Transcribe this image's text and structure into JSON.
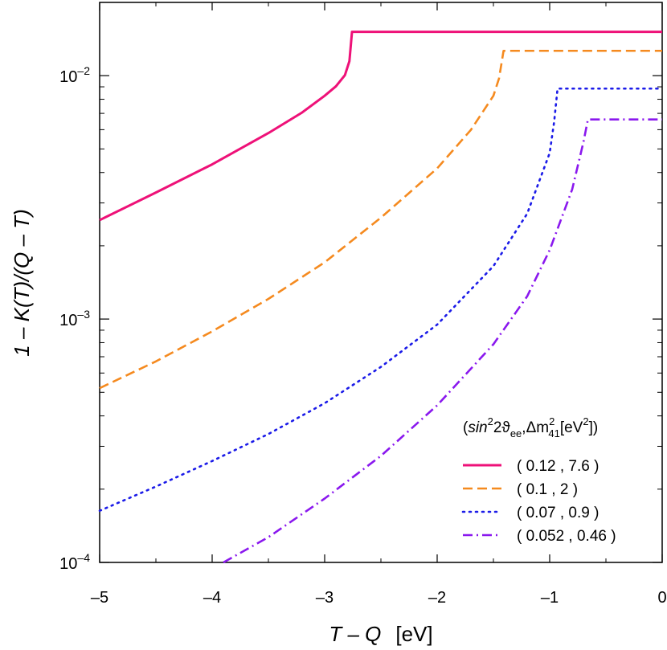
{
  "chart_data": {
    "type": "line",
    "xlabel": {
      "main": "T – Q",
      "unit": "[eV]"
    },
    "ylabel": "1 – K(T)/(Q – T)",
    "xlim": [
      -5,
      0
    ],
    "ylim": [
      0.0001,
      0.02
    ],
    "yscale": "log",
    "x_ticks": [
      {
        "value": -5,
        "label": "–5"
      },
      {
        "value": -4,
        "label": "–4"
      },
      {
        "value": -3,
        "label": "–3"
      },
      {
        "value": -2,
        "label": "–2"
      },
      {
        "value": -1,
        "label": "–1"
      },
      {
        "value": 0,
        "label": "0"
      }
    ],
    "y_ticks": [
      {
        "value": 0.0001,
        "base": "10",
        "exp": "–4"
      },
      {
        "value": 0.001,
        "base": "10",
        "exp": "–3"
      },
      {
        "value": 0.01,
        "base": "10",
        "exp": "–2"
      }
    ],
    "legend": {
      "position": "lower-right",
      "title": {
        "open": "(",
        "sin": "sin",
        "sin_exp": "2",
        "two_theta": "2ϑ",
        "ee_sub": "ee",
        "comma": ",",
        "delta_m": "Δm",
        "m_exp": "2",
        "m_sub": "41",
        "unit_open": "[eV",
        "unit_exp": "2",
        "unit_close": "])"
      }
    },
    "series": [
      {
        "name": "( 0.12 , 7.6 )",
        "color": "#ee1178",
        "dash": "solid",
        "kink_x": -2.757,
        "plateau": 0.01514,
        "points": [
          [
            -5,
            0.00255
          ],
          [
            -4.5,
            0.00331
          ],
          [
            -4,
            0.00432
          ],
          [
            -3.5,
            0.00581
          ],
          [
            -3.2,
            0.00706
          ],
          [
            -3,
            0.00827
          ],
          [
            -2.9,
            0.00904
          ],
          [
            -2.82,
            0.01005
          ],
          [
            -2.78,
            0.01147
          ],
          [
            -2.757,
            0.01514
          ],
          [
            0,
            0.01514
          ]
        ]
      },
      {
        "name": "( 0.1 , 2 )",
        "color": "#f58a1f",
        "dash": "dashed",
        "kink_x": -1.41,
        "plateau": 0.01265,
        "points": [
          [
            -5,
            0.00052
          ],
          [
            -4.5,
            0.00067
          ],
          [
            -4,
            0.00089
          ],
          [
            -3.5,
            0.00121
          ],
          [
            -3,
            0.00171
          ],
          [
            -2.5,
            0.00261
          ],
          [
            -2,
            0.00416
          ],
          [
            -1.7,
            0.00599
          ],
          [
            -1.5,
            0.00827
          ],
          [
            -1.45,
            0.00975
          ],
          [
            -1.41,
            0.01265
          ],
          [
            0,
            0.01265
          ]
        ]
      },
      {
        "name": "( 0.07 , 0.9 )",
        "color": "#1b1be8",
        "dash": "dotted",
        "kink_x": -0.93,
        "plateau": 0.00885,
        "points": [
          [
            -5,
            0.000163
          ],
          [
            -4.5,
            0.000205
          ],
          [
            -4,
            0.000261
          ],
          [
            -3.5,
            0.000337
          ],
          [
            -3,
            0.000451
          ],
          [
            -2.5,
            0.000636
          ],
          [
            -2,
            0.000949
          ],
          [
            -1.5,
            0.00165
          ],
          [
            -1.2,
            0.00271
          ],
          [
            -1,
            0.00481
          ],
          [
            -0.96,
            0.00648
          ],
          [
            -0.93,
            0.00885
          ],
          [
            0,
            0.00885
          ]
        ]
      },
      {
        "name": "( 0.052 , 0.46 )",
        "color": "#8a18ee",
        "dash": "dashdot",
        "kink_x": -0.66,
        "plateau": 0.00661,
        "points": [
          [
            -3.9,
            0.0001
          ],
          [
            -3.5,
            0.000127
          ],
          [
            -3,
            0.000183
          ],
          [
            -2.5,
            0.000274
          ],
          [
            -2,
            0.000442
          ],
          [
            -1.5,
            0.000788
          ],
          [
            -1.2,
            0.00124
          ],
          [
            -1,
            0.00192
          ],
          [
            -0.8,
            0.00341
          ],
          [
            -0.7,
            0.00533
          ],
          [
            -0.66,
            0.00661
          ],
          [
            0,
            0.00661
          ]
        ]
      }
    ]
  }
}
